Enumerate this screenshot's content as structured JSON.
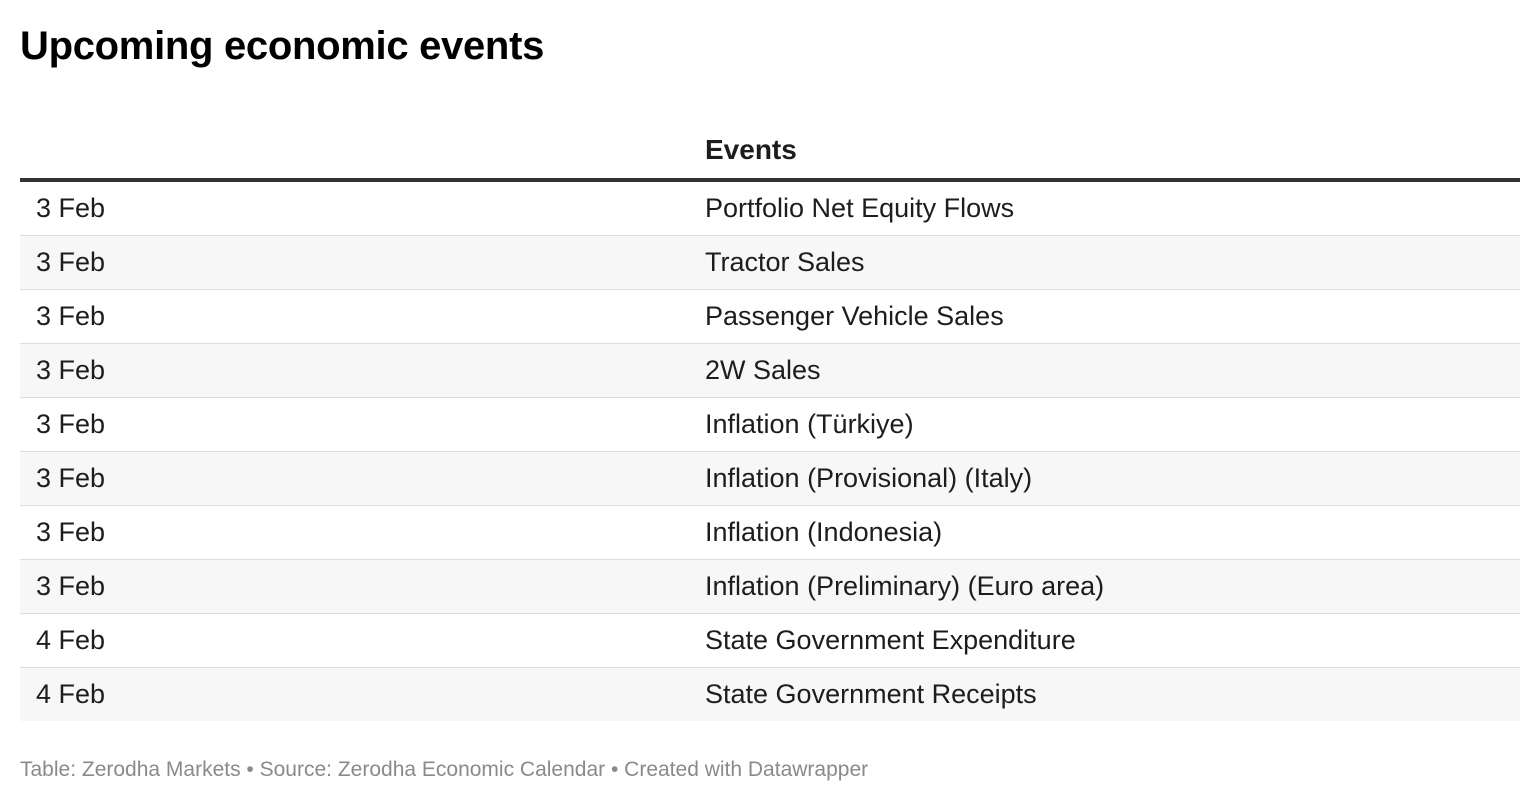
{
  "title": "Upcoming economic events",
  "table": {
    "headers": [
      "",
      "Events"
    ],
    "rows": [
      {
        "date": "3 Feb",
        "event": "Portfolio Net Equity Flows"
      },
      {
        "date": "3 Feb",
        "event": "Tractor Sales"
      },
      {
        "date": "3 Feb",
        "event": "Passenger Vehicle Sales"
      },
      {
        "date": "3 Feb",
        "event": "2W Sales"
      },
      {
        "date": "3 Feb",
        "event": "Inflation (Türkiye)"
      },
      {
        "date": "3 Feb",
        "event": "Inflation (Provisional) (Italy)"
      },
      {
        "date": "3 Feb",
        "event": "Inflation (Indonesia)"
      },
      {
        "date": "3 Feb",
        "event": "Inflation (Preliminary) (Euro area)"
      },
      {
        "date": "4 Feb",
        "event": "State Government Expenditure"
      },
      {
        "date": "4 Feb",
        "event": "State Government Receipts"
      }
    ]
  },
  "footer": "Table: Zerodha Markets • Source: Zerodha Economic Calendar • Created with Datawrapper"
}
